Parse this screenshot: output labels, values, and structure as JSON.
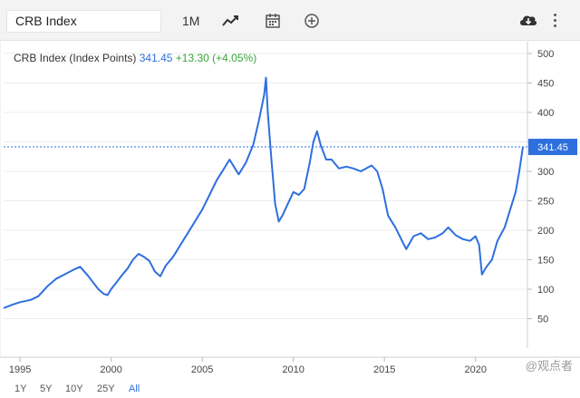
{
  "toolbar": {
    "symbol": "CRB Index",
    "interval": "1M"
  },
  "legend": {
    "name": "CRB Index (Index Points)",
    "value": "341.45",
    "change": "+13.30 (+4.05%)"
  },
  "last_value_label": "341.45",
  "range_buttons": [
    "1Y",
    "5Y",
    "10Y",
    "25Y",
    "All"
  ],
  "watermark": "@观点者",
  "colors": {
    "line": "#2e6fde",
    "change_positive": "#3aa53a",
    "active_range": "#2e6fde"
  },
  "chart_data": {
    "type": "line",
    "title": "",
    "xlabel": "",
    "ylabel": "",
    "x_ticks": [
      "1995",
      "2000",
      "2005",
      "2010",
      "2015",
      "2020"
    ],
    "y_ticks": [
      "50",
      "100",
      "150",
      "200",
      "250",
      "300",
      "350",
      "400",
      "450",
      "500"
    ],
    "ylim": [
      0,
      520
    ],
    "xlim": [
      1994.1,
      2022.6
    ],
    "grid": true,
    "last_value": 341.45,
    "series": [
      {
        "points": [
          [
            1994.1,
            68
          ],
          [
            1994.6,
            74
          ],
          [
            1995.0,
            78
          ],
          [
            1995.6,
            82
          ],
          [
            1996.0,
            88
          ],
          [
            1996.5,
            105
          ],
          [
            1997.0,
            118
          ],
          [
            1997.5,
            126
          ],
          [
            1998.0,
            134
          ],
          [
            1998.3,
            138
          ],
          [
            1998.7,
            124
          ],
          [
            1999.0,
            112
          ],
          [
            1999.3,
            100
          ],
          [
            1999.6,
            92
          ],
          [
            1999.8,
            90
          ],
          [
            2000.0,
            100
          ],
          [
            2000.3,
            112
          ],
          [
            2000.6,
            124
          ],
          [
            2000.9,
            135
          ],
          [
            2001.2,
            150
          ],
          [
            2001.5,
            160
          ],
          [
            2001.8,
            155
          ],
          [
            2002.1,
            148
          ],
          [
            2002.4,
            130
          ],
          [
            2002.7,
            122
          ],
          [
            2003.0,
            140
          ],
          [
            2003.4,
            155
          ],
          [
            2003.8,
            175
          ],
          [
            2004.2,
            195
          ],
          [
            2004.6,
            215
          ],
          [
            2005.0,
            235
          ],
          [
            2005.4,
            260
          ],
          [
            2005.8,
            285
          ],
          [
            2006.2,
            305
          ],
          [
            2006.5,
            320
          ],
          [
            2006.8,
            305
          ],
          [
            2007.0,
            295
          ],
          [
            2007.4,
            315
          ],
          [
            2007.8,
            345
          ],
          [
            2008.1,
            385
          ],
          [
            2008.4,
            430
          ],
          [
            2008.5,
            459
          ],
          [
            2008.6,
            400
          ],
          [
            2008.8,
            320
          ],
          [
            2009.0,
            245
          ],
          [
            2009.2,
            215
          ],
          [
            2009.4,
            225
          ],
          [
            2009.7,
            245
          ],
          [
            2010.0,
            265
          ],
          [
            2010.3,
            260
          ],
          [
            2010.6,
            270
          ],
          [
            2010.9,
            315
          ],
          [
            2011.1,
            350
          ],
          [
            2011.3,
            368
          ],
          [
            2011.5,
            345
          ],
          [
            2011.8,
            320
          ],
          [
            2012.1,
            320
          ],
          [
            2012.5,
            305
          ],
          [
            2012.9,
            308
          ],
          [
            2013.3,
            305
          ],
          [
            2013.7,
            300
          ],
          [
            2014.0,
            305
          ],
          [
            2014.3,
            310
          ],
          [
            2014.6,
            300
          ],
          [
            2014.9,
            270
          ],
          [
            2015.2,
            225
          ],
          [
            2015.6,
            205
          ],
          [
            2016.0,
            180
          ],
          [
            2016.2,
            168
          ],
          [
            2016.6,
            190
          ],
          [
            2017.0,
            195
          ],
          [
            2017.4,
            185
          ],
          [
            2017.8,
            188
          ],
          [
            2018.2,
            195
          ],
          [
            2018.5,
            205
          ],
          [
            2018.9,
            192
          ],
          [
            2019.3,
            185
          ],
          [
            2019.7,
            182
          ],
          [
            2020.0,
            190
          ],
          [
            2020.2,
            175
          ],
          [
            2020.35,
            125
          ],
          [
            2020.6,
            138
          ],
          [
            2020.9,
            150
          ],
          [
            2021.2,
            182
          ],
          [
            2021.6,
            205
          ],
          [
            2021.9,
            235
          ],
          [
            2022.2,
            265
          ],
          [
            2022.4,
            300
          ],
          [
            2022.6,
            341.45
          ]
        ]
      }
    ]
  }
}
